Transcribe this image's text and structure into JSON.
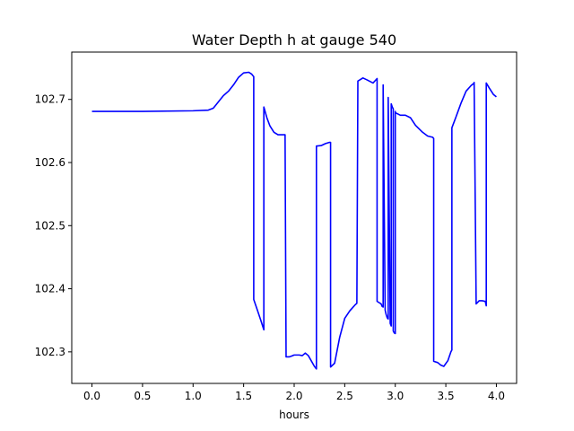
{
  "chart_data": {
    "type": "line",
    "title": "Water Depth h at gauge 540",
    "xlabel": "hours",
    "ylabel": "",
    "xlim": [
      -0.2,
      4.2
    ],
    "ylim": [
      102.25,
      102.775
    ],
    "xticks": [
      0.0,
      0.5,
      1.0,
      1.5,
      2.0,
      2.5,
      3.0,
      3.5,
      4.0
    ],
    "xtick_labels": [
      "0.0",
      "0.5",
      "1.0",
      "1.5",
      "2.0",
      "2.5",
      "3.0",
      "3.5",
      "4.0"
    ],
    "yticks": [
      102.3,
      102.4,
      102.5,
      102.6,
      102.7
    ],
    "ytick_labels": [
      "102.3",
      "102.4",
      "102.5",
      "102.6",
      "102.7"
    ],
    "grid": false,
    "legend": false,
    "series": [
      {
        "color": "#0000ff",
        "x": [
          0.0,
          0.5,
          1.0,
          1.15,
          1.2,
          1.25,
          1.3,
          1.35,
          1.4,
          1.45,
          1.5,
          1.55,
          1.58,
          1.6,
          1.6,
          1.63,
          1.67,
          1.7,
          1.7,
          1.73,
          1.76,
          1.8,
          1.84,
          1.88,
          1.91,
          1.92,
          1.95,
          1.97,
          2.0,
          2.05,
          2.08,
          2.11,
          2.14,
          2.2,
          2.22,
          2.22,
          2.27,
          2.31,
          2.35,
          2.36,
          2.36,
          2.4,
          2.45,
          2.5,
          2.55,
          2.6,
          2.62,
          2.63,
          2.68,
          2.72,
          2.78,
          2.82,
          2.82,
          2.86,
          2.87,
          2.88,
          2.88,
          2.9,
          2.91,
          2.92,
          2.93,
          2.93,
          2.95,
          2.96,
          2.96,
          2.97,
          2.98,
          2.98,
          2.99,
          3.0,
          3.0,
          3.0,
          3.05,
          3.1,
          3.15,
          3.2,
          3.27,
          3.32,
          3.37,
          3.38,
          3.38,
          3.42,
          3.45,
          3.48,
          3.52,
          3.55,
          3.56,
          3.56,
          3.6,
          3.65,
          3.7,
          3.75,
          3.78,
          3.78,
          3.8,
          3.83,
          3.86,
          3.89,
          3.9,
          3.9,
          3.93,
          3.97,
          4.0
        ],
        "y": [
          102.681,
          102.681,
          102.682,
          102.683,
          102.686,
          102.696,
          102.706,
          102.713,
          102.723,
          102.735,
          102.742,
          102.743,
          102.74,
          102.736,
          102.383,
          102.369,
          102.35,
          102.335,
          102.688,
          102.671,
          102.658,
          102.648,
          102.644,
          102.644,
          102.644,
          102.292,
          102.292,
          102.293,
          102.295,
          102.295,
          102.294,
          102.298,
          102.294,
          102.277,
          102.273,
          102.626,
          102.627,
          102.63,
          102.632,
          102.632,
          102.276,
          102.282,
          102.323,
          102.353,
          102.365,
          102.374,
          102.377,
          102.729,
          102.734,
          102.731,
          102.726,
          102.733,
          102.38,
          102.376,
          102.372,
          102.371,
          102.723,
          102.366,
          102.359,
          102.354,
          102.352,
          102.703,
          102.345,
          102.341,
          102.693,
          102.688,
          102.685,
          102.333,
          102.33,
          102.329,
          102.681,
          102.679,
          102.675,
          102.675,
          102.671,
          102.659,
          102.648,
          102.642,
          102.64,
          102.638,
          102.285,
          102.283,
          102.279,
          102.277,
          102.286,
          102.3,
          102.303,
          102.655,
          102.672,
          102.694,
          102.713,
          102.722,
          102.726,
          102.727,
          102.376,
          102.381,
          102.381,
          102.38,
          102.373,
          102.726,
          102.718,
          102.708,
          102.704
        ]
      }
    ]
  }
}
